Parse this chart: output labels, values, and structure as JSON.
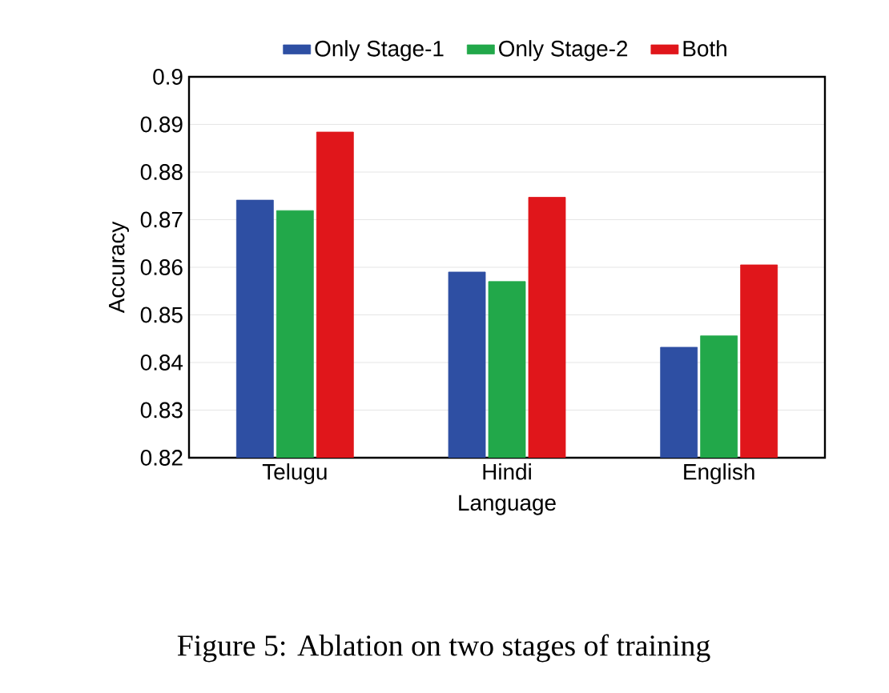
{
  "chart_data": {
    "type": "bar",
    "xlabel": "Language",
    "ylabel": "Accuracy",
    "categories": [
      "Telugu",
      "Hindi",
      "English"
    ],
    "series": [
      {
        "name": "Only Stage-1",
        "color": "#2e4fa3",
        "values": [
          0.8741,
          0.859,
          0.8432
        ]
      },
      {
        "name": "Only Stage-2",
        "color": "#22a84a",
        "values": [
          0.8719,
          0.857,
          0.8456
        ]
      },
      {
        "name": "Both",
        "color": "#e0161b",
        "values": [
          0.8884,
          0.8747,
          0.8605
        ]
      }
    ],
    "ylim": [
      0.82,
      0.9
    ],
    "yticks": [
      0.82,
      0.83,
      0.84,
      0.85,
      0.86,
      0.87,
      0.88,
      0.89,
      0.9
    ],
    "grid": "y",
    "legend": "top",
    "annotations": [
      "Figure 5: Ablation on two stages of training"
    ]
  }
}
